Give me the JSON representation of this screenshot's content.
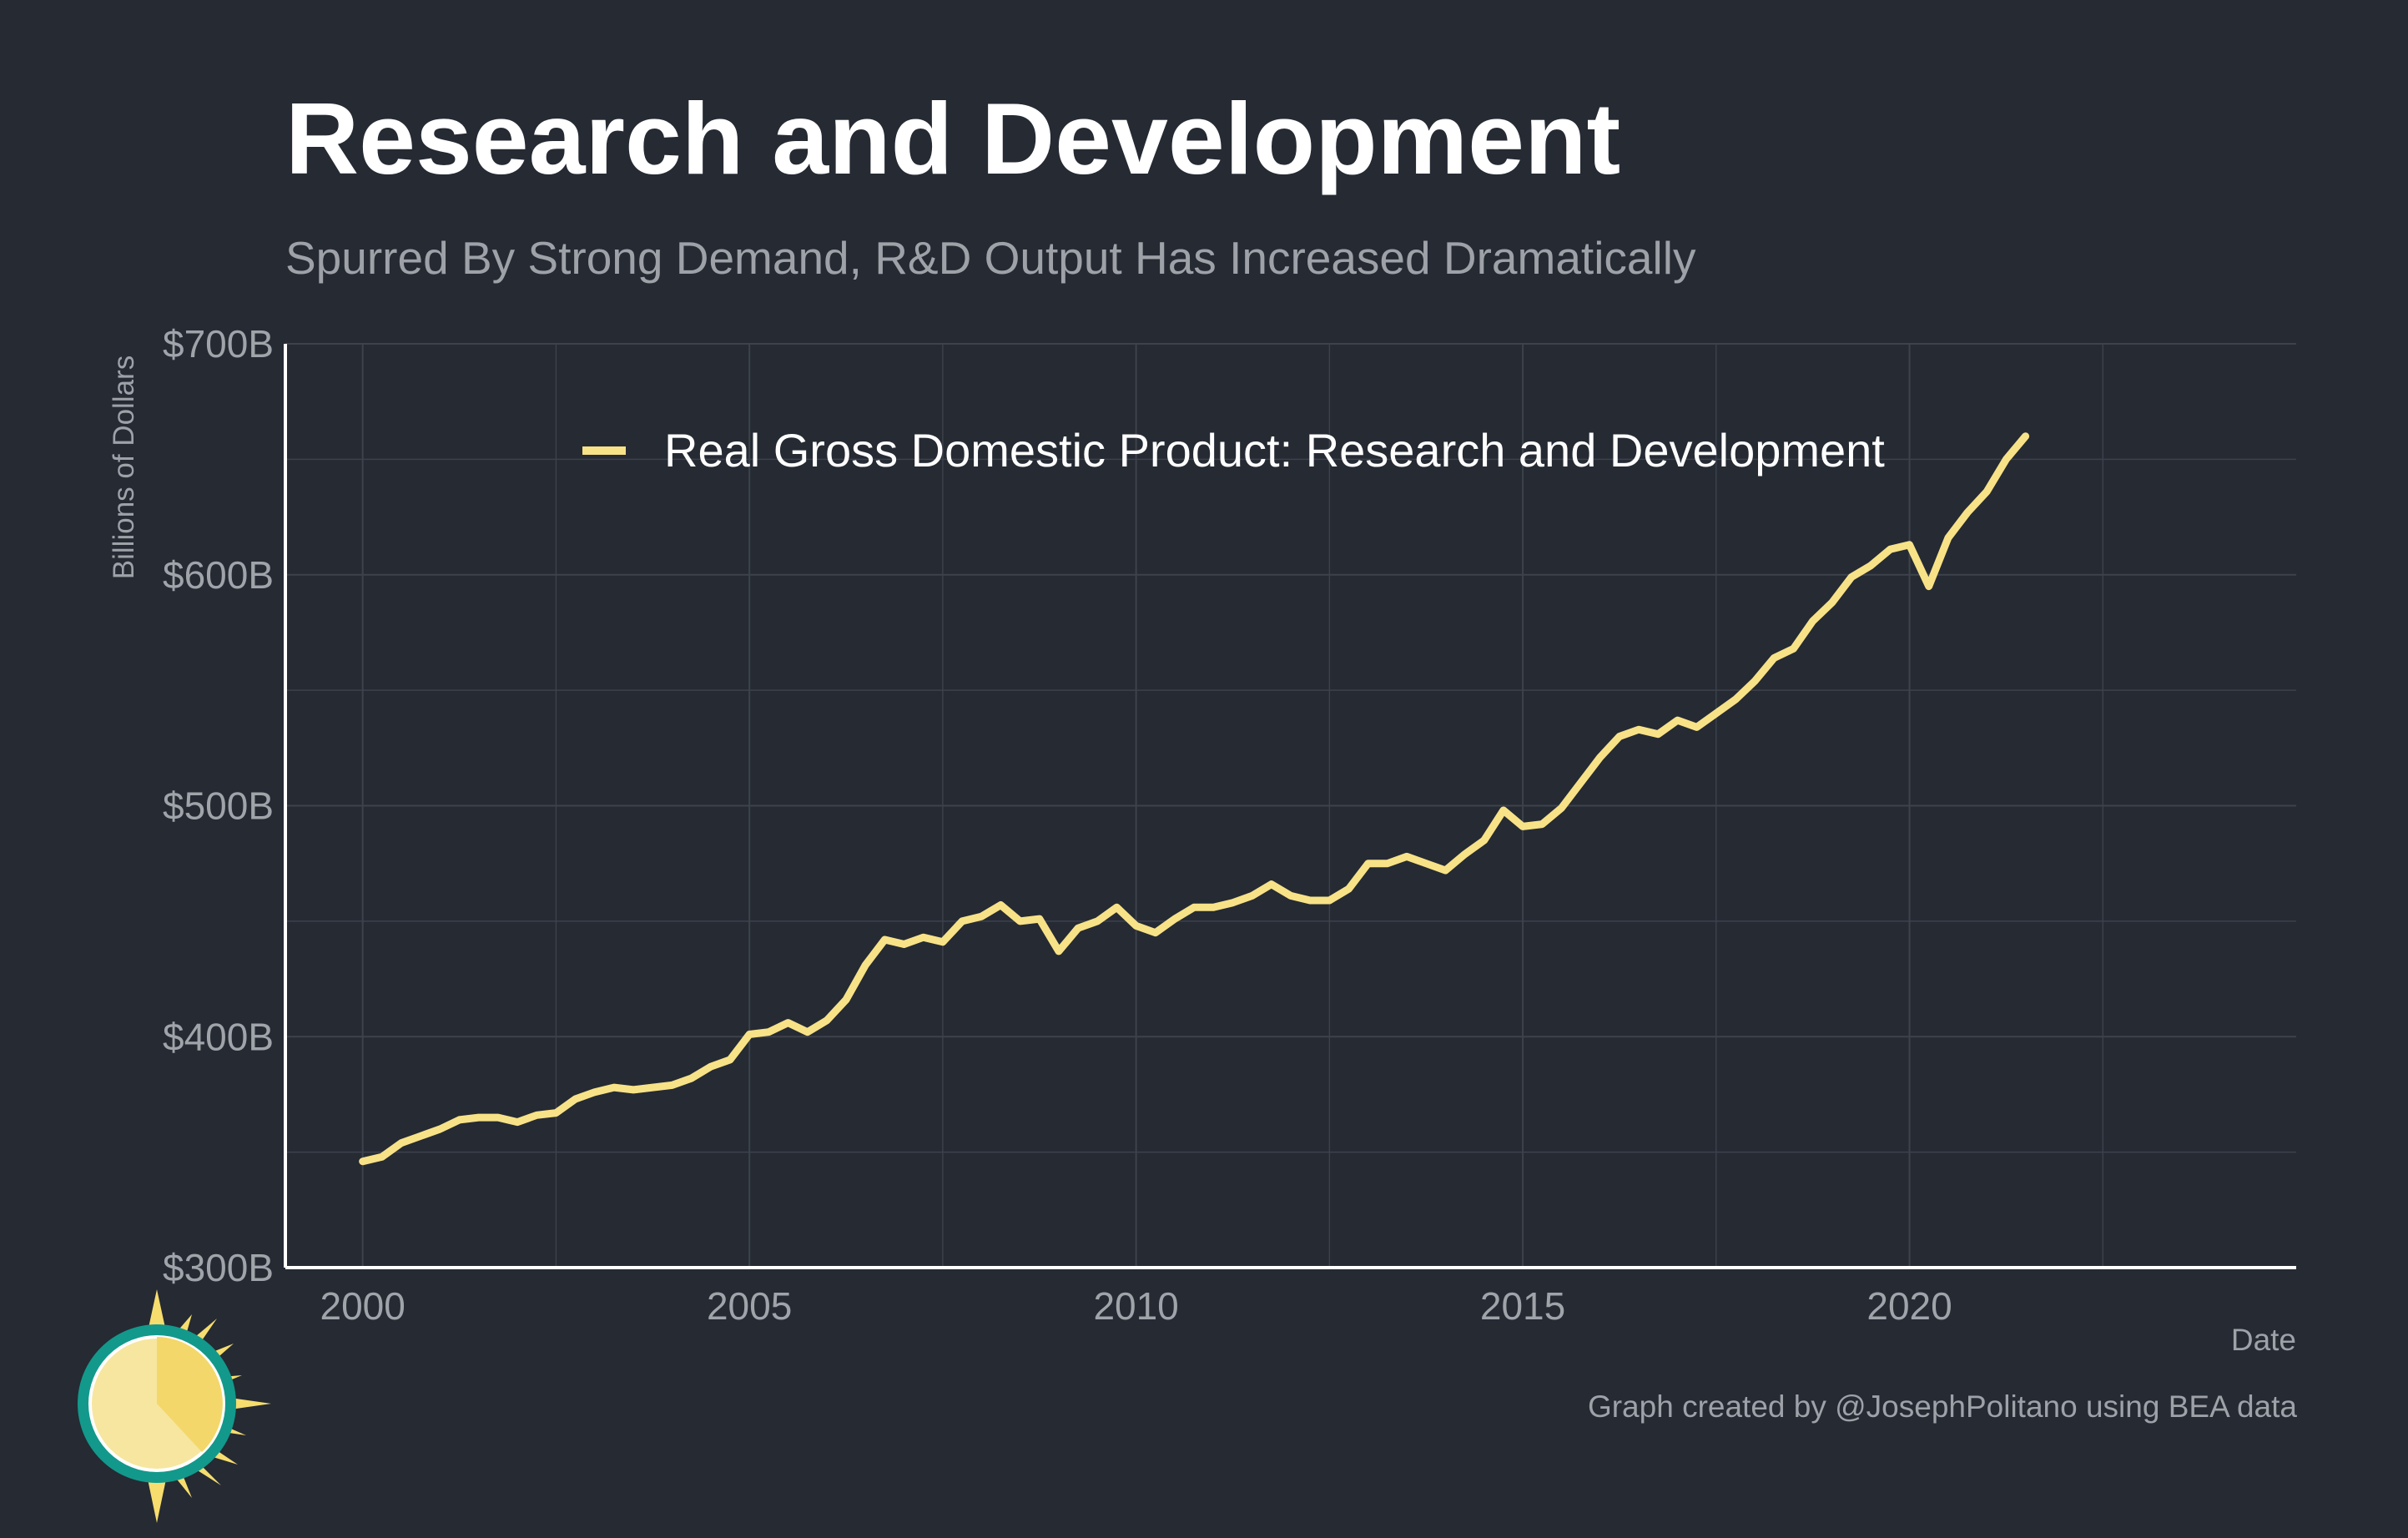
{
  "title": "Research and Development",
  "subtitle": "Spurred By Strong Demand, R&D Output Has Increased Dramatically",
  "caption": "Graph created by @JosephPolitano using BEA data",
  "colors": {
    "background": "#252a33",
    "line": "#f8e287",
    "grid": "#3d424b",
    "axis": "#ffffff",
    "tick_text": "#a0a4aa"
  },
  "chart_data": {
    "type": "line",
    "title": "Research and Development",
    "subtitle": "Spurred By Strong Demand, R&D Output Has Increased Dramatically",
    "xlabel": "Date",
    "ylabel": "Billions of Dollars",
    "xlim": [
      1999.0,
      2025.0
    ],
    "ylim": [
      300,
      700
    ],
    "x_ticks": [
      2000,
      2005,
      2010,
      2015,
      2020
    ],
    "x_tick_labels": [
      "2000",
      "2005",
      "2010",
      "2015",
      "2020"
    ],
    "y_ticks": [
      300,
      400,
      500,
      600,
      700
    ],
    "y_tick_labels": [
      "$300B",
      "$400B",
      "$500B",
      "$600B",
      "$700B"
    ],
    "grid": true,
    "legend_position": "top-center",
    "series": [
      {
        "name": "Real Gross Domestic Product: Research and Development",
        "x": [
          2000.0,
          2000.25,
          2000.5,
          2000.75,
          2001.0,
          2001.25,
          2001.5,
          2001.75,
          2002.0,
          2002.25,
          2002.5,
          2002.75,
          2003.0,
          2003.25,
          2003.5,
          2003.75,
          2004.0,
          2004.25,
          2004.5,
          2004.75,
          2005.0,
          2005.25,
          2005.5,
          2005.75,
          2006.0,
          2006.25,
          2006.5,
          2006.75,
          2007.0,
          2007.25,
          2007.5,
          2007.75,
          2008.0,
          2008.25,
          2008.5,
          2008.75,
          2009.0,
          2009.25,
          2009.5,
          2009.75,
          2010.0,
          2010.25,
          2010.5,
          2010.75,
          2011.0,
          2011.25,
          2011.5,
          2011.75,
          2012.0,
          2012.25,
          2012.5,
          2012.75,
          2013.0,
          2013.25,
          2013.5,
          2013.75,
          2014.0,
          2014.25,
          2014.5,
          2014.75,
          2015.0,
          2015.25,
          2015.5,
          2015.75,
          2016.0,
          2016.25,
          2016.5,
          2016.75,
          2017.0,
          2017.25,
          2017.5,
          2017.75,
          2018.0,
          2018.25,
          2018.5,
          2018.75,
          2019.0,
          2019.25,
          2019.5,
          2019.75,
          2020.0,
          2020.25,
          2020.5,
          2020.75,
          2021.0,
          2021.25,
          2021.5
        ],
        "values": [
          346,
          348,
          354,
          357,
          360,
          364,
          365,
          365,
          363,
          366,
          367,
          373,
          376,
          378,
          377,
          378,
          379,
          382,
          387,
          390,
          401,
          402,
          406,
          402,
          407,
          416,
          431,
          442,
          440,
          443,
          441,
          450,
          452,
          457,
          450,
          451,
          437,
          447,
          450,
          456,
          448,
          445,
          451,
          456,
          456,
          458,
          461,
          466,
          461,
          459,
          459,
          464,
          475,
          475,
          478,
          475,
          472,
          479,
          485,
          498,
          491,
          492,
          499,
          510,
          521,
          530,
          533,
          531,
          537,
          534,
          540,
          546,
          554,
          564,
          568,
          580,
          588,
          599,
          604,
          611,
          613,
          595,
          616,
          627,
          636,
          650,
          660
        ]
      }
    ]
  }
}
